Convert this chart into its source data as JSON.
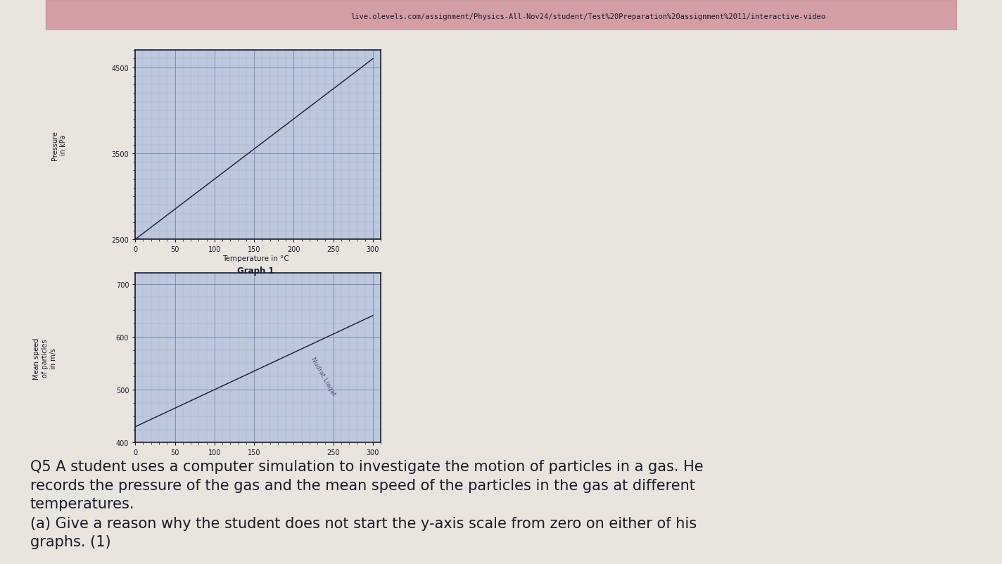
{
  "page_bg": "#d8d4ce",
  "url_bar_bg": "#b8b0a8",
  "url_text": "live.olevels.com/assignment/Physics-All-Nov24/student/Test%20Preparation%20assignment%2011/interactive-video",
  "content_bg": "#e8e4de",
  "graph1": {
    "ylabel": "Pressure\nin kPa",
    "xlabel": "Temperature in °C",
    "caption": "Graph 1",
    "yticks": [
      2500,
      3500,
      4500
    ],
    "xticks": [
      0,
      50,
      100,
      150,
      200,
      250,
      300
    ],
    "ylim": [
      2500,
      4700
    ],
    "xlim": [
      0,
      310
    ],
    "line_x": [
      0,
      300
    ],
    "line_y": [
      2500,
      4600
    ],
    "grid_major_color": "#6070a0",
    "grid_minor_color": "#8090b8",
    "line_color": "#1a1a2e",
    "bg_color": "#bcc8dc"
  },
  "graph2": {
    "ylabel": "Mean speed\nof particles\nin m/s",
    "yticks": [
      400,
      500,
      600,
      700
    ],
    "xticks": [
      0,
      50,
      100,
      150,
      250,
      300
    ],
    "ylim": [
      400,
      720
    ],
    "xlim": [
      0,
      310
    ],
    "line_x": [
      0,
      300
    ],
    "line_y": [
      430,
      640
    ],
    "grid_major_color": "#6070a0",
    "grid_minor_color": "#8090b8",
    "line_color": "#1a1a2e",
    "bg_color": "#bcc8dc"
  },
  "question_text": "Q5 A student uses a computer simulation to investigate the motion of particles in a gas. He\nrecords the pressure of the gas and the mean speed of the particles in the gas at different\ntemperatures.",
  "part_a_text": "(a) Give a reason why the student does not start the y-axis scale from zero on either of his\ngraphs. (1)"
}
